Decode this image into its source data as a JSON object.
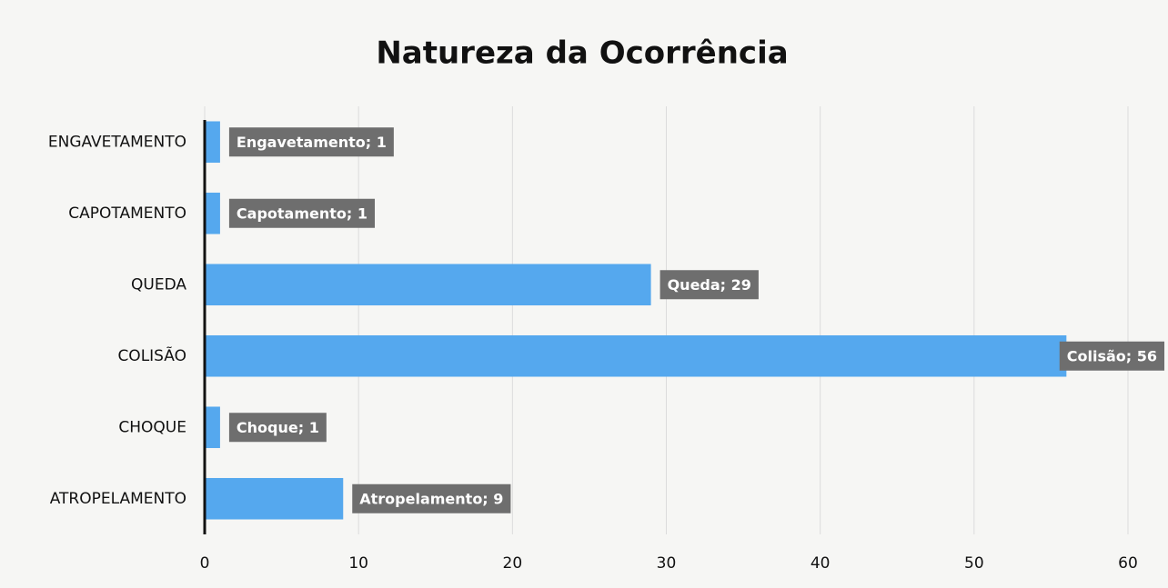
{
  "chart_data": {
    "type": "barh",
    "title": "Natureza da Ocorrência",
    "categories": [
      "ENGAVETAMENTO",
      "CAPOTAMENTO",
      "QUEDA",
      "COLISÃO",
      "CHOQUE",
      "ATROPELAMENTO"
    ],
    "values": [
      1,
      1,
      29,
      56,
      1,
      9
    ],
    "value_labels": [
      "Engavetamento; 1",
      "Capotamento; 1",
      "Queda; 29",
      "Colisão; 56",
      "Choque; 1",
      "Atropelamento; 9"
    ],
    "color": "#55a8ee",
    "xlim": [
      0,
      60
    ],
    "xticks": [
      0,
      10,
      20,
      30,
      40,
      50,
      60
    ],
    "grid": true
  }
}
